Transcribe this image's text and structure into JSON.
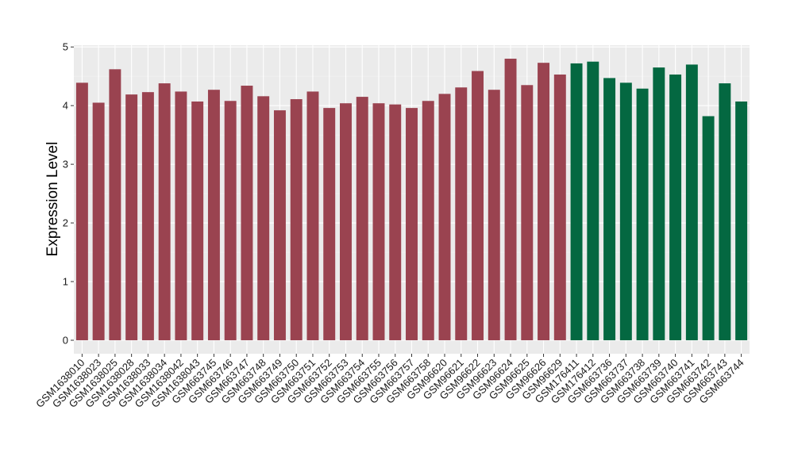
{
  "chart_data": {
    "type": "bar",
    "ylabel": "Expression Level",
    "xlabel": "",
    "ylim": [
      -0.23,
      5.03
    ],
    "yticks": [
      0,
      1,
      2,
      3,
      4,
      5
    ],
    "grid": true,
    "categories": [
      "GSM1638010",
      "GSM1638023",
      "GSM1638025",
      "GSM1638028",
      "GSM1638033",
      "GSM1638034",
      "GSM1638042",
      "GSM1638043",
      "GSM663745",
      "GSM663746",
      "GSM663747",
      "GSM663748",
      "GSM663749",
      "GSM663750",
      "GSM663751",
      "GSM663752",
      "GSM663753",
      "GSM663754",
      "GSM663755",
      "GSM663756",
      "GSM663757",
      "GSM663758",
      "GSM96620",
      "GSM96621",
      "GSM96622",
      "GSM96623",
      "GSM96624",
      "GSM96625",
      "GSM96626",
      "GSM96629",
      "GSM176411",
      "GSM176412",
      "GSM663736",
      "GSM663737",
      "GSM663738",
      "GSM663739",
      "GSM663740",
      "GSM663741",
      "GSM663742",
      "GSM663743",
      "GSM663744"
    ],
    "values": [
      4.39,
      4.05,
      4.62,
      4.19,
      4.23,
      4.38,
      4.24,
      4.07,
      4.27,
      4.08,
      4.34,
      4.16,
      3.92,
      4.11,
      4.24,
      3.96,
      4.04,
      4.15,
      4.04,
      4.02,
      3.96,
      4.08,
      4.2,
      4.31,
      4.59,
      4.27,
      4.8,
      4.35,
      4.73,
      4.53,
      4.72,
      4.75,
      4.47,
      4.39,
      4.29,
      4.65,
      4.53,
      4.7,
      3.82,
      4.38,
      4.07
    ],
    "groups": [
      {
        "color": "#9a4350",
        "count": 30
      },
      {
        "color": "#046841",
        "count": 11
      }
    ]
  },
  "colors": {
    "panel_background": "#ebebeb",
    "grid_major": "#ffffff",
    "grid_minor": "#f3f3f3"
  }
}
